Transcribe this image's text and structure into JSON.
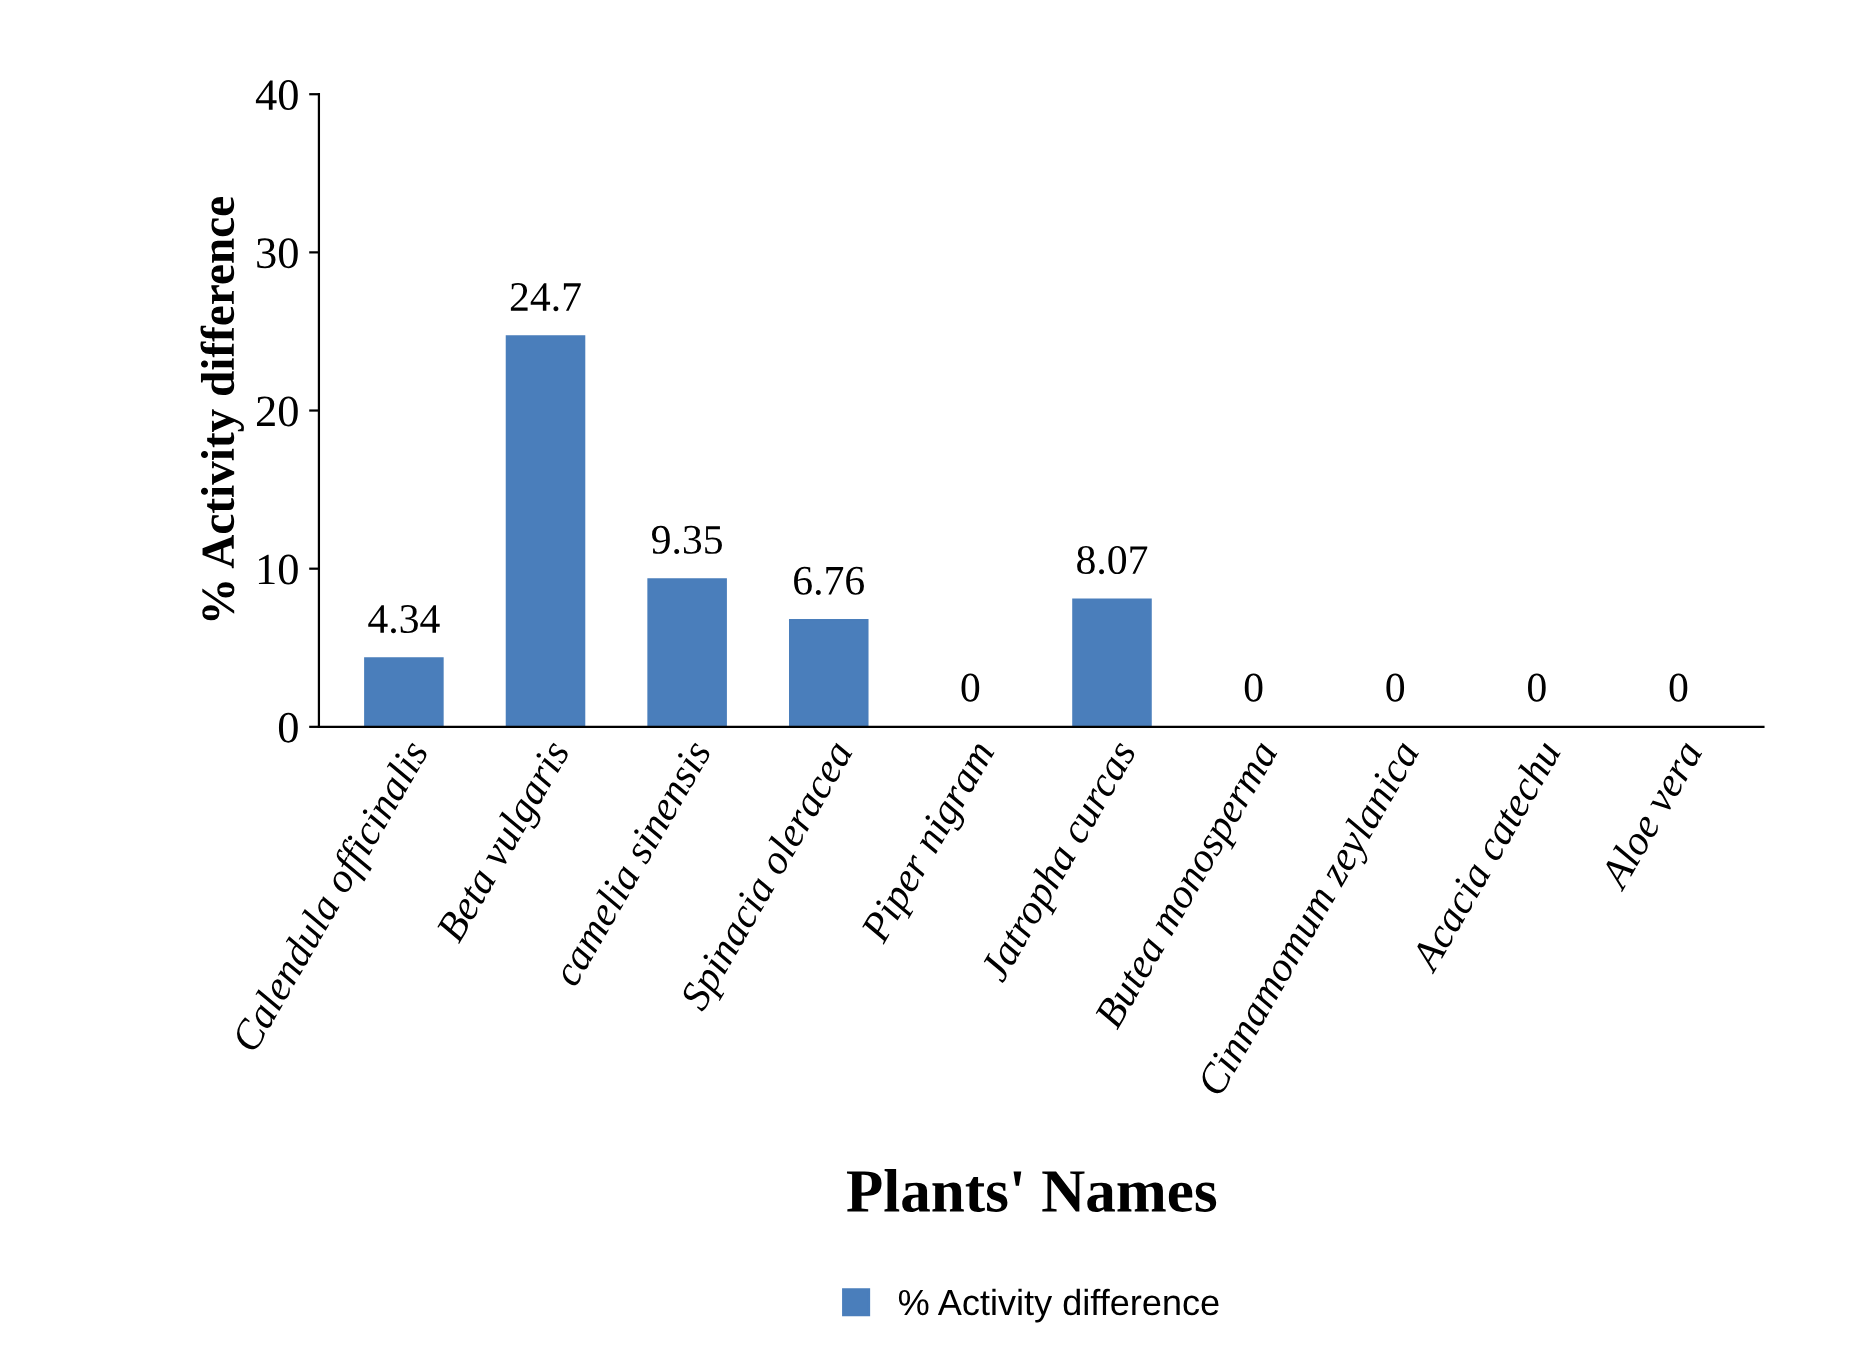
{
  "chart_data": {
    "type": "bar",
    "xlabel": "Plants' Names",
    "ylabel": "% Activity difference",
    "categories": [
      "Calendula officinalis",
      "Beta vulgaris",
      "camelia sinensis",
      "Spinacia oleracea",
      "Piper nigram",
      "Jatropha curcas",
      "Butea monosperma",
      "Cinnamomum zeylanica",
      "Acacia catechu",
      "Aloe vera"
    ],
    "series": [
      {
        "name": "% Activity difference",
        "color": "#4a7ebb",
        "values": [
          4.34,
          24.7,
          9.35,
          6.76,
          0,
          8.07,
          0,
          0,
          0,
          0
        ]
      }
    ],
    "ylim": [
      0,
      40
    ],
    "yticks": [
      0,
      10,
      20,
      30,
      40
    ],
    "data_labels": true,
    "legend": "bottom",
    "grid": false
  }
}
